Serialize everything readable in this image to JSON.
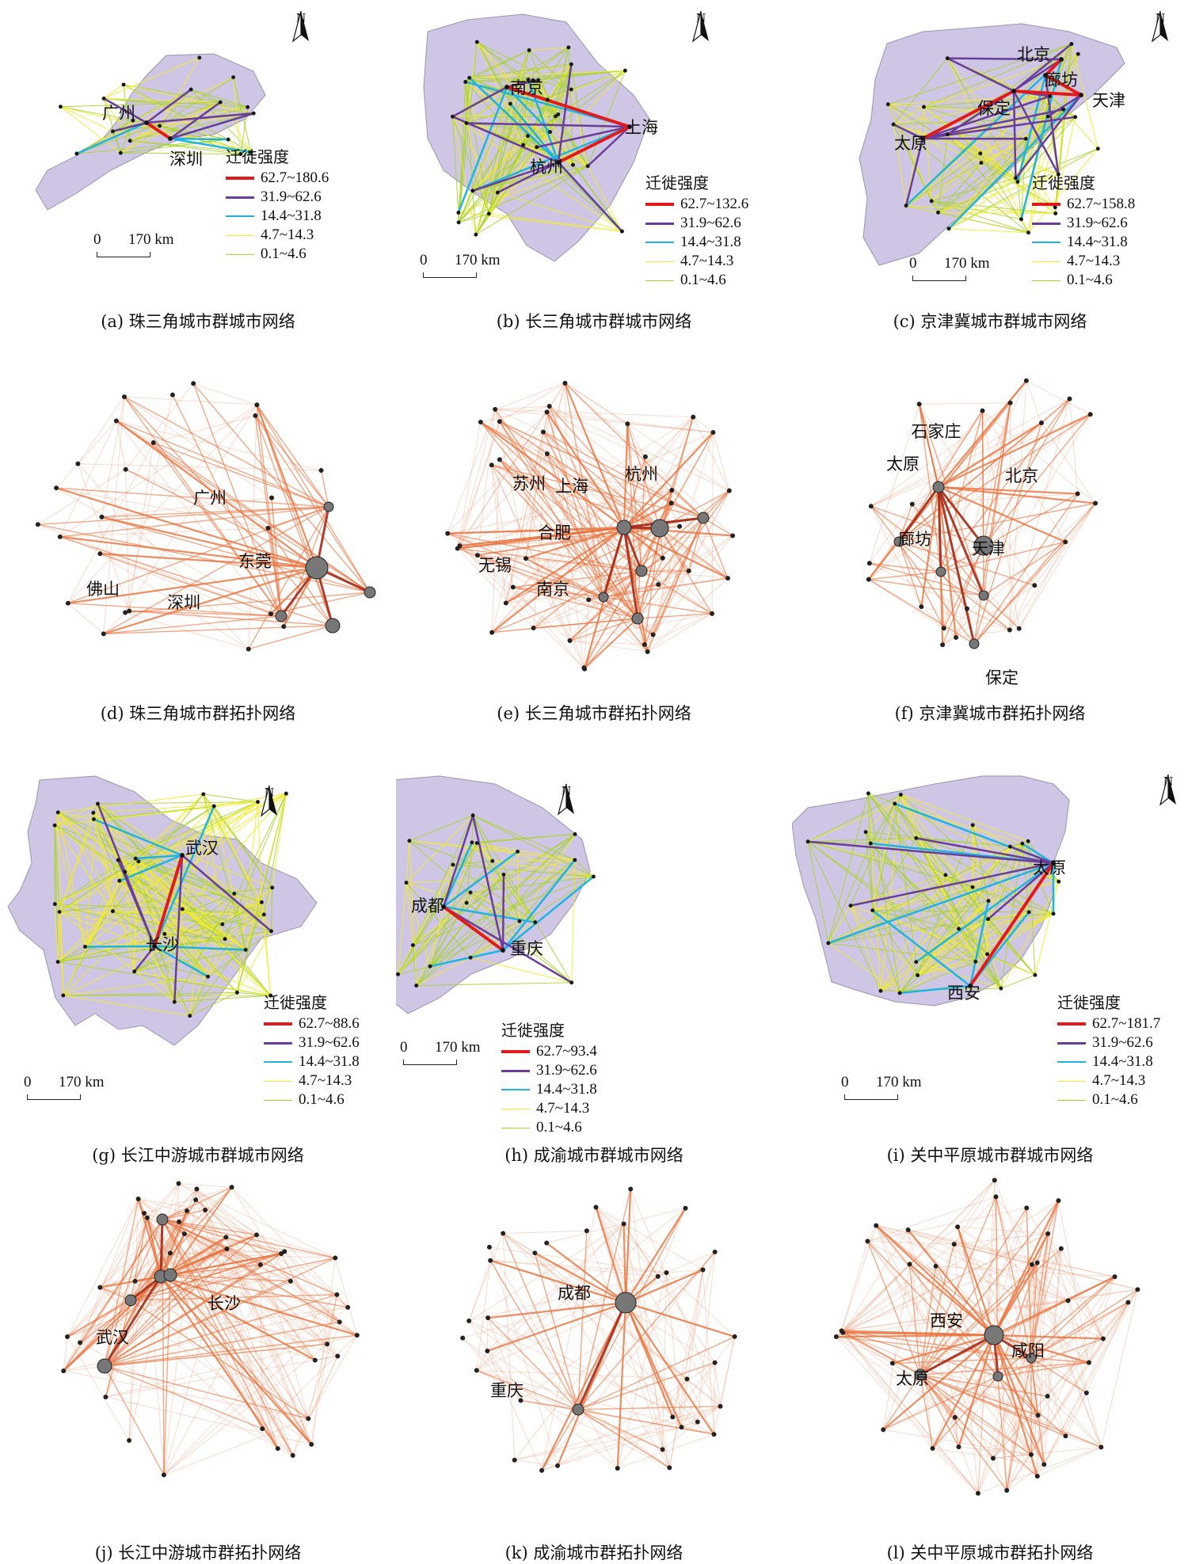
{
  "legend_title": "迁徙强度",
  "scale": {
    "zero": "0",
    "dist": "170 km"
  },
  "north_label": "N",
  "classes": [
    {
      "range_key": "c1",
      "color": "#e31a1c"
    },
    {
      "range_key": "c2",
      "color": "#6a3d9a"
    },
    {
      "range_key": "c3",
      "color": "#1fb4e0"
    },
    {
      "range_key": "c4",
      "color": "#f2ec2c"
    },
    {
      "range_key": "c5",
      "color": "#a6d42c"
    }
  ],
  "colors": {
    "region_fill": "#cfc6e6",
    "region_stroke": "#9a95b0",
    "topo_edge": "#e8703a",
    "topo_edge_strong": "#a52a18",
    "node": "#777777"
  },
  "panels": [
    {
      "id": "a",
      "type": "map",
      "caption": "(a) 珠三角城市群城市网络",
      "legend": [
        "62.7~180.6",
        "31.9~62.6",
        "14.4~31.8",
        "4.7~14.3",
        "0.1~4.6"
      ],
      "cities": [
        "广州",
        "深圳"
      ]
    },
    {
      "id": "b",
      "type": "map",
      "caption": "(b) 长三角城市群城市网络",
      "legend": [
        "62.7~132.6",
        "31.9~62.6",
        "14.4~31.8",
        "4.7~14.3",
        "0.1~4.6"
      ],
      "cities": [
        "南京",
        "上海",
        "杭州"
      ]
    },
    {
      "id": "c",
      "type": "map",
      "caption": "(c) 京津冀城市群城市网络",
      "legend": [
        "62.7~158.8",
        "31.9~62.6",
        "14.4~31.8",
        "4.7~14.3",
        "0.1~4.6"
      ],
      "cities": [
        "北京",
        "廊坊",
        "天津",
        "保定",
        "太原"
      ]
    },
    {
      "id": "d",
      "type": "topo",
      "caption": "(d) 珠三角城市群拓扑网络",
      "cities": [
        "广州",
        "东莞",
        "佛山",
        "深圳"
      ]
    },
    {
      "id": "e",
      "type": "topo",
      "caption": "(e) 长三角城市群拓扑网络",
      "cities": [
        "苏州",
        "上海",
        "杭州",
        "合肥",
        "无锡",
        "南京"
      ]
    },
    {
      "id": "f",
      "type": "topo",
      "caption": "(f) 京津冀城市群拓扑网络",
      "cities": [
        "石家庄",
        "太原",
        "北京",
        "廊坊",
        "天津",
        "保定"
      ]
    },
    {
      "id": "g",
      "type": "map",
      "caption": "(g) 长江中游城市群城市网络",
      "legend": [
        "62.7~88.6",
        "31.9~62.6",
        "14.4~31.8",
        "4.7~14.3",
        "0.1~4.6"
      ],
      "cities": [
        "武汉",
        "长沙"
      ]
    },
    {
      "id": "h",
      "type": "map",
      "caption": "(h) 成渝城市群城市网络",
      "legend": [
        "62.7~93.4",
        "31.9~62.6",
        "14.4~31.8",
        "4.7~14.3",
        "0.1~4.6"
      ],
      "cities": [
        "成都",
        "重庆"
      ]
    },
    {
      "id": "i",
      "type": "map",
      "caption": "(i) 关中平原城市群城市网络",
      "legend": [
        "62.7~181.7",
        "31.9~62.6",
        "14.4~31.8",
        "4.7~14.3",
        "0.1~4.6"
      ],
      "cities": [
        "太原",
        "西安"
      ]
    },
    {
      "id": "j",
      "type": "topo",
      "caption": "(j) 长江中游城市群拓扑网络",
      "cities": [
        "长沙",
        "武汉"
      ]
    },
    {
      "id": "k",
      "type": "topo",
      "caption": "(k) 成渝城市群拓扑网络",
      "cities": [
        "成都",
        "重庆"
      ]
    },
    {
      "id": "l",
      "type": "topo",
      "caption": "(l) 关中平原城市群拓扑网络",
      "cities": [
        "西安",
        "咸阳",
        "太原"
      ]
    }
  ]
}
